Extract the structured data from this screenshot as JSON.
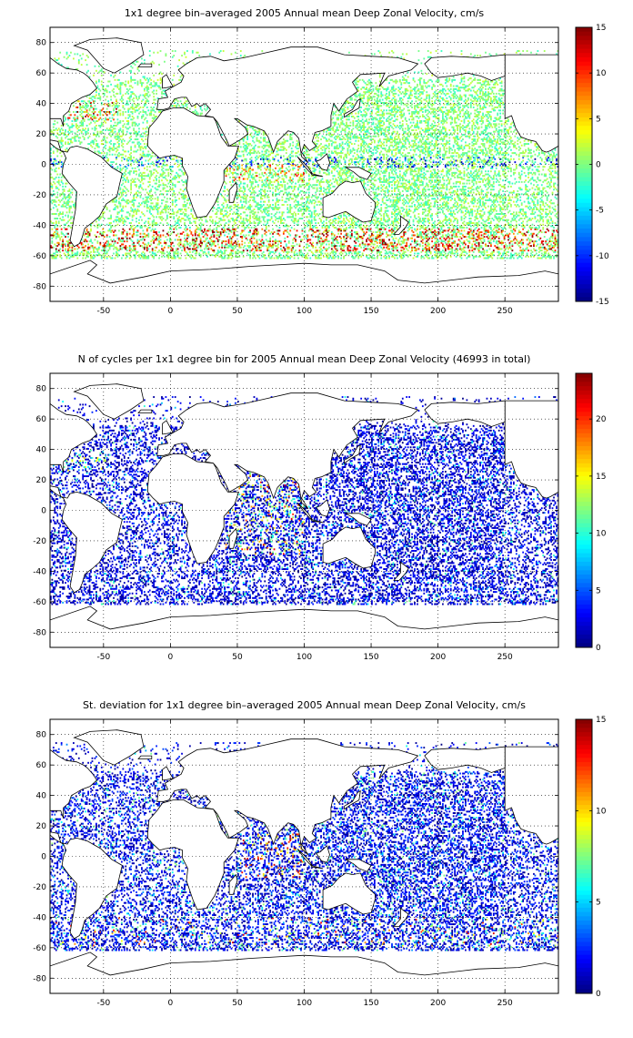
{
  "chart_data": [
    {
      "type": "heatmap",
      "title": "1x1 degree bin–averaged 2005 Annual mean Deep Zonal Velocity, cm/s",
      "xlabel": "",
      "ylabel": "",
      "xlim": [
        -90,
        290
      ],
      "ylim": [
        -90,
        90
      ],
      "x_ticks": [
        -50,
        0,
        50,
        100,
        150,
        200,
        250
      ],
      "y_ticks": [
        80,
        60,
        40,
        20,
        0,
        -20,
        -40,
        -60,
        -80
      ],
      "colorbar": {
        "min": -15,
        "max": 15,
        "ticks": [
          15,
          10,
          5,
          0,
          -5,
          -10,
          -15
        ],
        "colormap": "jet"
      },
      "grid": true,
      "description_values": "Velocity per 1x1 degree bin; mostly near 0 (green/cyan); strong eastward (red, up to ~15) along Southern Ocean ~45-55S and Gulf Stream/Kuroshio; westward (blue) in equatorial bands"
    },
    {
      "type": "heatmap",
      "title": "N of cycles per 1x1 degree bin for 2005 Annual mean Deep Zonal Velocity (46993 in total)",
      "xlabel": "",
      "ylabel": "",
      "xlim": [
        -90,
        290
      ],
      "ylim": [
        -90,
        90
      ],
      "x_ticks": [
        -50,
        0,
        50,
        100,
        150,
        200,
        250
      ],
      "y_ticks": [
        80,
        60,
        40,
        20,
        0,
        -20,
        -40,
        -60,
        -80
      ],
      "colorbar": {
        "min": 0,
        "max": 24,
        "ticks": [
          20,
          15,
          10,
          5,
          0
        ],
        "colormap": "jet"
      },
      "grid": true,
      "total_cycles": 46993
    },
    {
      "type": "heatmap",
      "title": "St. deviation for 1x1 degree bin–averaged 2005 Annual mean Deep Zonal Velocity, cm/s",
      "xlabel": "",
      "ylabel": "",
      "xlim": [
        -90,
        290
      ],
      "ylim": [
        -90,
        90
      ],
      "x_ticks": [
        -50,
        0,
        50,
        100,
        150,
        200,
        250
      ],
      "y_ticks": [
        80,
        60,
        40,
        20,
        0,
        -20,
        -40,
        -60,
        -80
      ],
      "colorbar": {
        "min": 0,
        "max": 15,
        "ticks": [
          15,
          10,
          5,
          0
        ],
        "colormap": "jet"
      },
      "grid": true
    }
  ]
}
